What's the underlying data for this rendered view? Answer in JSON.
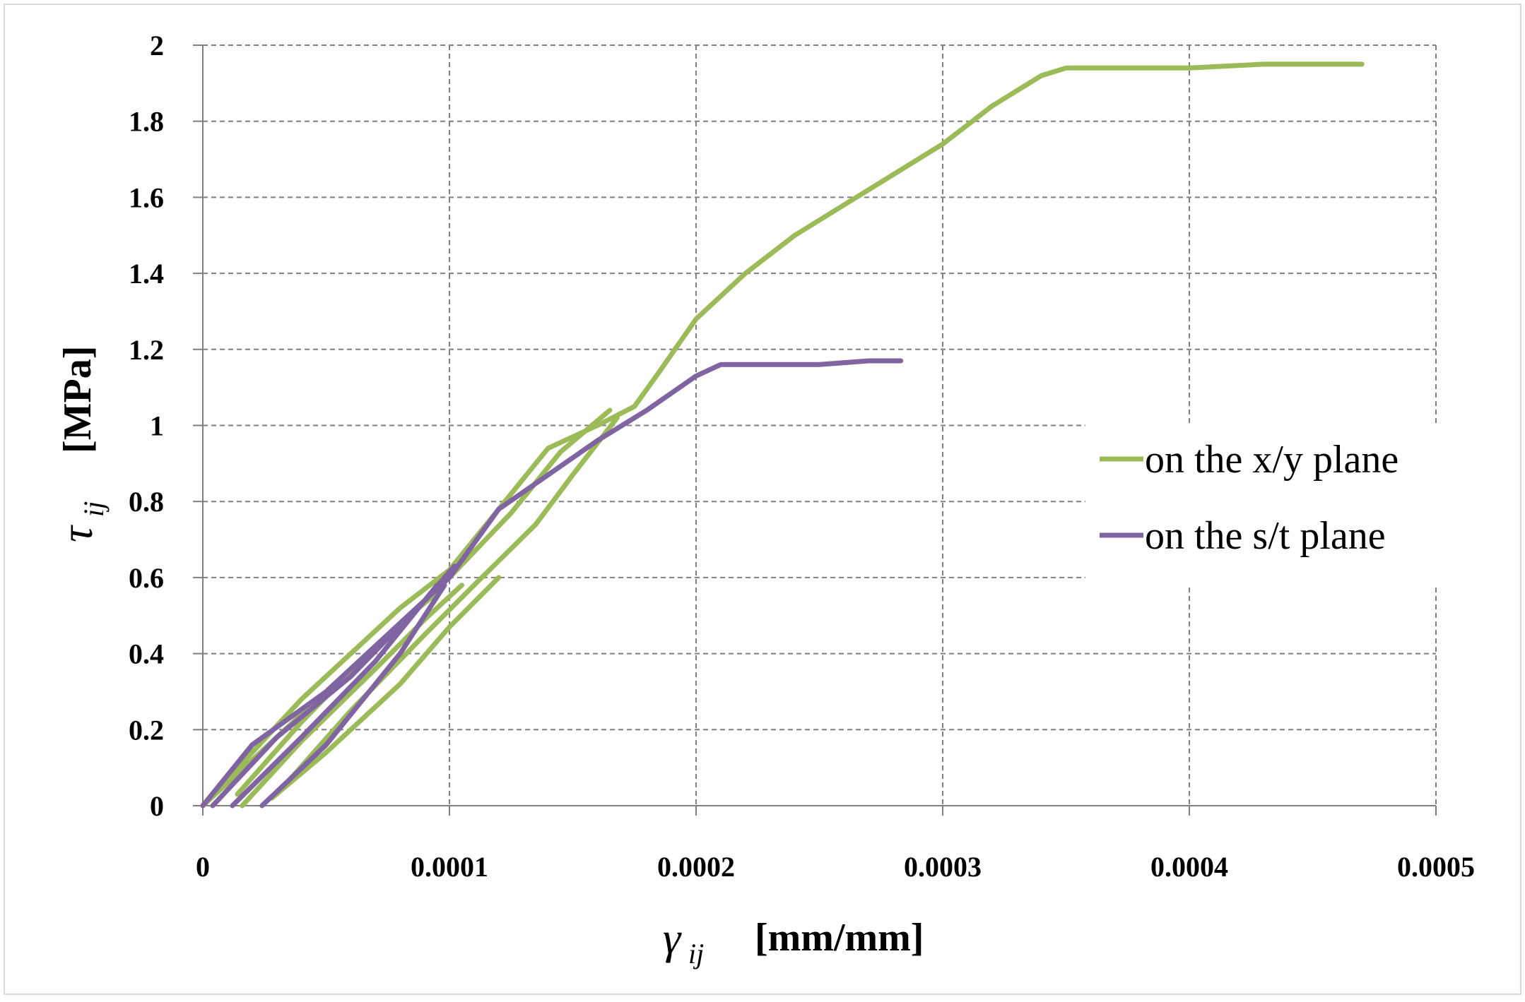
{
  "chart_data": {
    "type": "line",
    "title": "",
    "xlabel": {
      "symbol": "γ",
      "subscript": "ij",
      "unit": "[mm/mm]"
    },
    "ylabel": {
      "symbol": "τ",
      "subscript": "ij",
      "unit": "[MPa]"
    },
    "xlim": [
      0,
      0.0005
    ],
    "ylim": [
      0,
      2
    ],
    "x_ticks": [
      0,
      0.0001,
      0.0002,
      0.0003,
      0.0004,
      0.0005
    ],
    "x_tick_labels": [
      "0",
      "0.0001",
      "0.0002",
      "0.0003",
      "0.0004",
      "0.0005"
    ],
    "y_ticks": [
      0,
      0.2,
      0.4,
      0.6,
      0.8,
      1,
      1.2,
      1.4,
      1.6,
      1.8,
      2
    ],
    "y_tick_labels": [
      "0",
      "0.2",
      "0.4",
      "0.6",
      "0.8",
      "1",
      "1.2",
      "1.4",
      "1.6",
      "1.8",
      "2"
    ],
    "grid": true,
    "legend_position": "right-middle",
    "series": [
      {
        "name": "on the x/y plane",
        "color": "#9bbb59",
        "segments": [
          {
            "x": [
              0,
              3e-05,
              6e-05,
              8e-05,
              9.5e-05
            ],
            "y": [
              0,
              0.18,
              0.36,
              0.48,
              0.56
            ]
          },
          {
            "x": [
              1.6e-05,
              4e-05,
              7e-05,
              9e-05,
              0.000105
            ],
            "y": [
              0,
              0.17,
              0.36,
              0.49,
              0.58
            ]
          },
          {
            "x": [
              2.8e-05,
              5e-05,
              8e-05,
              0.0001,
              0.00012
            ],
            "y": [
              0.02,
              0.14,
              0.32,
              0.47,
              0.6
            ]
          },
          {
            "x": [
              1.4e-05,
              4e-05,
              7e-05,
              0.0001,
              0.000125,
              0.000145,
              0.000165
            ],
            "y": [
              0.03,
              0.22,
              0.42,
              0.6,
              0.77,
              0.93,
              1.04
            ]
          },
          {
            "x": [
              3e-05,
              6e-05,
              9e-05,
              0.00011,
              0.000135,
              0.00015,
              0.000168
            ],
            "y": [
              0.03,
              0.25,
              0.45,
              0.58,
              0.74,
              0.87,
              1.02
            ]
          },
          {
            "x": [
              0,
              2e-05,
              4e-05,
              6e-05,
              8e-05,
              0.0001,
              0.00012,
              0.00014,
              0.00016,
              0.000175,
              0.000185,
              0.0002,
              0.00022,
              0.00024,
              0.00026,
              0.00028,
              0.0003,
              0.00032,
              0.00034,
              0.00035,
              0.0004,
              0.00043,
              0.00047
            ],
            "y": [
              0,
              0.14,
              0.28,
              0.4,
              0.52,
              0.62,
              0.78,
              0.94,
              1.0,
              1.05,
              1.14,
              1.28,
              1.4,
              1.5,
              1.58,
              1.66,
              1.74,
              1.84,
              1.92,
              1.94,
              1.94,
              1.95,
              1.95
            ]
          }
        ]
      },
      {
        "name": "on the s/t plane",
        "color": "#8064a2",
        "segments": [
          {
            "x": [
              4e-06,
              3e-05,
              6e-05,
              9e-05,
              0.000102
            ],
            "y": [
              0,
              0.18,
              0.34,
              0.54,
              0.63
            ]
          },
          {
            "x": [
              1.2e-05,
              4e-05,
              7e-05,
              9.5e-05
            ],
            "y": [
              0,
              0.18,
              0.38,
              0.58
            ]
          },
          {
            "x": [
              2.4e-05,
              5e-05,
              8e-05,
              9.8e-05
            ],
            "y": [
              0,
              0.16,
              0.4,
              0.58
            ]
          },
          {
            "x": [
              0,
              2e-05,
              5e-05,
              8e-05,
              0.0001,
              0.00012,
              0.00014,
              0.00016,
              0.00018,
              0.0002,
              0.00021,
              0.00025,
              0.00027,
              0.000283
            ],
            "y": [
              0,
              0.16,
              0.3,
              0.48,
              0.6,
              0.78,
              0.87,
              0.96,
              1.04,
              1.13,
              1.16,
              1.16,
              1.17,
              1.17
            ]
          }
        ]
      }
    ]
  }
}
